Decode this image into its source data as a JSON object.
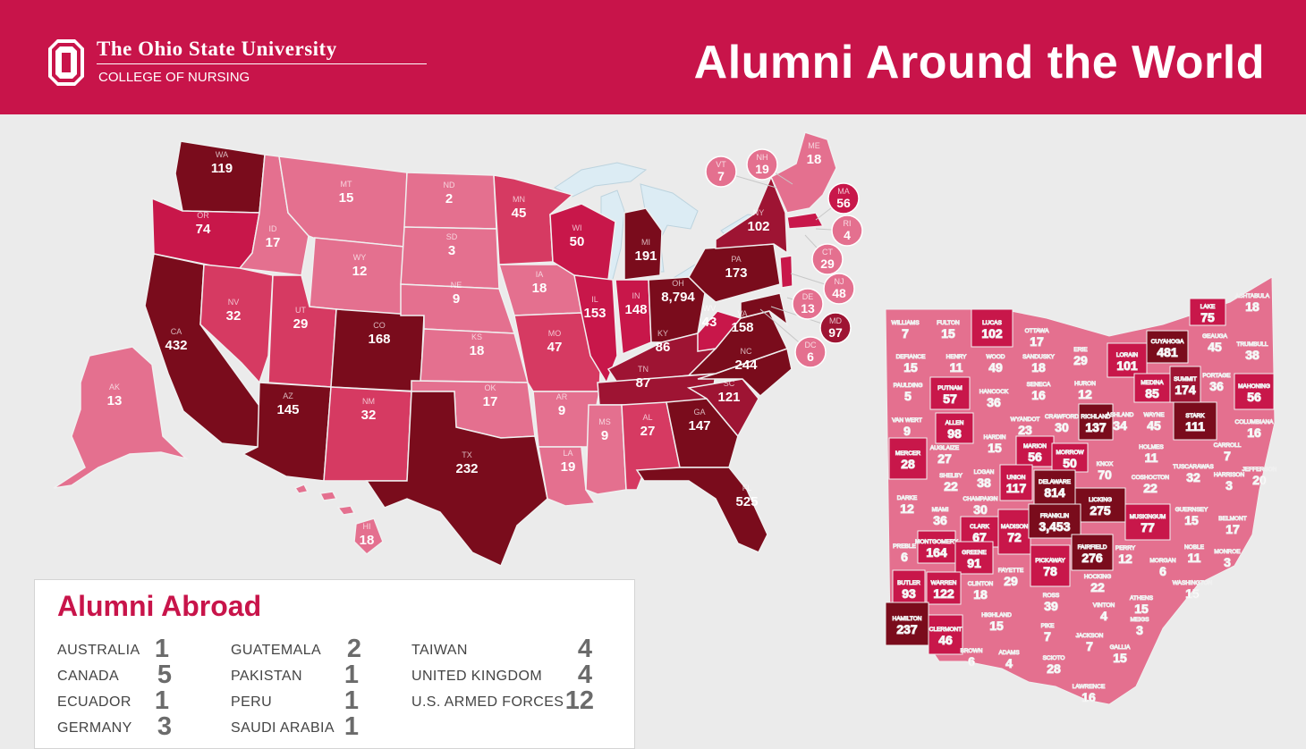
{
  "header": {
    "university": "The Ohio State University",
    "college": "COLLEGE OF NURSING",
    "title": "Alumni Around the World"
  },
  "colors": {
    "header_red": "#c8144a",
    "tier_1": "#e4708f",
    "tier_2": "#d63a62",
    "tier_3": "#c8174a",
    "tier_4": "#9e1433",
    "tier_5": "#7a0c1c",
    "lakes": "#dcecf4",
    "background": "#ebebeb"
  },
  "us_states": [
    {
      "abbr": "WA",
      "value": "119"
    },
    {
      "abbr": "OR",
      "value": "74"
    },
    {
      "abbr": "CA",
      "value": "432"
    },
    {
      "abbr": "ID",
      "value": "17"
    },
    {
      "abbr": "NV",
      "value": "32"
    },
    {
      "abbr": "MT",
      "value": "15"
    },
    {
      "abbr": "WY",
      "value": "12"
    },
    {
      "abbr": "UT",
      "value": "29"
    },
    {
      "abbr": "AZ",
      "value": "145"
    },
    {
      "abbr": "CO",
      "value": "168"
    },
    {
      "abbr": "NM",
      "value": "32"
    },
    {
      "abbr": "ND",
      "value": "2"
    },
    {
      "abbr": "SD",
      "value": "3"
    },
    {
      "abbr": "NE",
      "value": "9"
    },
    {
      "abbr": "KS",
      "value": "18"
    },
    {
      "abbr": "OK",
      "value": "17"
    },
    {
      "abbr": "TX",
      "value": "232"
    },
    {
      "abbr": "MN",
      "value": "45"
    },
    {
      "abbr": "IA",
      "value": "18"
    },
    {
      "abbr": "MO",
      "value": "47"
    },
    {
      "abbr": "AR",
      "value": "9"
    },
    {
      "abbr": "LA",
      "value": "19"
    },
    {
      "abbr": "WI",
      "value": "50"
    },
    {
      "abbr": "IL",
      "value": "153"
    },
    {
      "abbr": "MI",
      "value": "191"
    },
    {
      "abbr": "IN",
      "value": "148"
    },
    {
      "abbr": "OH",
      "value": "8,794"
    },
    {
      "abbr": "KY",
      "value": "86"
    },
    {
      "abbr": "TN",
      "value": "87"
    },
    {
      "abbr": "MS",
      "value": "9"
    },
    {
      "abbr": "AL",
      "value": "27"
    },
    {
      "abbr": "GA",
      "value": "147"
    },
    {
      "abbr": "FL",
      "value": "525"
    },
    {
      "abbr": "SC",
      "value": "121"
    },
    {
      "abbr": "NC",
      "value": "244"
    },
    {
      "abbr": "VA",
      "value": "158"
    },
    {
      "abbr": "WV",
      "value": "43"
    },
    {
      "abbr": "PA",
      "value": "173"
    },
    {
      "abbr": "NY",
      "value": "102"
    },
    {
      "abbr": "AK",
      "value": "13"
    },
    {
      "abbr": "HI",
      "value": "18"
    },
    {
      "abbr": "ME",
      "value": "18"
    }
  ],
  "northeast_callouts": [
    {
      "abbr": "VT",
      "value": "7"
    },
    {
      "abbr": "NH",
      "value": "19"
    },
    {
      "abbr": "MA",
      "value": "56"
    },
    {
      "abbr": "RI",
      "value": "4"
    },
    {
      "abbr": "CT",
      "value": "29"
    },
    {
      "abbr": "NJ",
      "value": "48"
    },
    {
      "abbr": "DE",
      "value": "13"
    },
    {
      "abbr": "MD",
      "value": "97"
    },
    {
      "abbr": "DC",
      "value": "6"
    }
  ],
  "ohio_counties": [
    {
      "name": "WILLIAMS",
      "value": "7"
    },
    {
      "name": "FULTON",
      "value": "15"
    },
    {
      "name": "LUCAS",
      "value": "102"
    },
    {
      "name": "OTTAWA",
      "value": "17"
    },
    {
      "name": "LAKE",
      "value": "75"
    },
    {
      "name": "ASHTABULA",
      "value": "18"
    },
    {
      "name": "DEFIANCE",
      "value": "15"
    },
    {
      "name": "HENRY",
      "value": "11"
    },
    {
      "name": "WOOD",
      "value": "49"
    },
    {
      "name": "SANDUSKY",
      "value": "18"
    },
    {
      "name": "ERIE",
      "value": "29"
    },
    {
      "name": "LORAIN",
      "value": "101"
    },
    {
      "name": "CUYAHOGA",
      "value": "481"
    },
    {
      "name": "GEAUGA",
      "value": "45"
    },
    {
      "name": "TRUMBULL",
      "value": "38"
    },
    {
      "name": "PAULDING",
      "value": "5"
    },
    {
      "name": "PUTNAM",
      "value": "57"
    },
    {
      "name": "HANCOCK",
      "value": "36"
    },
    {
      "name": "SENECA",
      "value": "16"
    },
    {
      "name": "HURON",
      "value": "12"
    },
    {
      "name": "MEDINA",
      "value": "85"
    },
    {
      "name": "SUMMIT",
      "value": "174"
    },
    {
      "name": "PORTAGE",
      "value": "36"
    },
    {
      "name": "MAHONING",
      "value": "56"
    },
    {
      "name": "VAN WERT",
      "value": "9"
    },
    {
      "name": "ALLEN",
      "value": "98"
    },
    {
      "name": "WYANDOT",
      "value": "23"
    },
    {
      "name": "CRAWFORD",
      "value": "30"
    },
    {
      "name": "RICHLAND",
      "value": "137"
    },
    {
      "name": "ASHLAND",
      "value": "34"
    },
    {
      "name": "WAYNE",
      "value": "45"
    },
    {
      "name": "STARK",
      "value": "111"
    },
    {
      "name": "COLUMBIANA",
      "value": "16"
    },
    {
      "name": "MERCER",
      "value": "28"
    },
    {
      "name": "AUGLAIZE",
      "value": "27"
    },
    {
      "name": "HARDIN",
      "value": "15"
    },
    {
      "name": "MARION",
      "value": "56"
    },
    {
      "name": "MORROW",
      "value": "50"
    },
    {
      "name": "KNOX",
      "value": "70"
    },
    {
      "name": "HOLMES",
      "value": "11"
    },
    {
      "name": "CARROLL",
      "value": "7"
    },
    {
      "name": "TUSCARAWAS",
      "value": "32"
    },
    {
      "name": "JEFFERSON",
      "value": "20"
    },
    {
      "name": "SHELBY",
      "value": "22"
    },
    {
      "name": "LOGAN",
      "value": "38"
    },
    {
      "name": "UNION",
      "value": "117"
    },
    {
      "name": "DELAWARE",
      "value": "814"
    },
    {
      "name": "LICKING",
      "value": "275"
    },
    {
      "name": "COSHOCTON",
      "value": "22"
    },
    {
      "name": "HARRISON",
      "value": "3"
    },
    {
      "name": "DARKE",
      "value": "12"
    },
    {
      "name": "MIAMI",
      "value": "36"
    },
    {
      "name": "CHAMPAIGN",
      "value": "30"
    },
    {
      "name": "CLARK",
      "value": "67"
    },
    {
      "name": "MADISON",
      "value": "72"
    },
    {
      "name": "FRANKLIN",
      "value": "3,453"
    },
    {
      "name": "MUSKINGUM",
      "value": "77"
    },
    {
      "name": "GUERNSEY",
      "value": "15"
    },
    {
      "name": "BELMONT",
      "value": "17"
    },
    {
      "name": "PREBLE",
      "value": "6"
    },
    {
      "name": "MONTGOMERY",
      "value": "164"
    },
    {
      "name": "GREENE",
      "value": "91"
    },
    {
      "name": "FAIRFIELD",
      "value": "276"
    },
    {
      "name": "PERRY",
      "value": "12"
    },
    {
      "name": "MORGAN",
      "value": "6"
    },
    {
      "name": "NOBLE",
      "value": "11"
    },
    {
      "name": "MONROE",
      "value": "3"
    },
    {
      "name": "PICKAWAY",
      "value": "78"
    },
    {
      "name": "FAYETTE",
      "value": "29"
    },
    {
      "name": "BUTLER",
      "value": "93"
    },
    {
      "name": "WARREN",
      "value": "122"
    },
    {
      "name": "CLINTON",
      "value": "18"
    },
    {
      "name": "HOCKING",
      "value": "22"
    },
    {
      "name": "ROSS",
      "value": "39"
    },
    {
      "name": "ATHENS",
      "value": "15"
    },
    {
      "name": "WASHINGTON",
      "value": "15"
    },
    {
      "name": "HAMILTON",
      "value": "237"
    },
    {
      "name": "CLERMONT",
      "value": "46"
    },
    {
      "name": "HIGHLAND",
      "value": "15"
    },
    {
      "name": "VINTON",
      "value": "4"
    },
    {
      "name": "MEIGS",
      "value": "3"
    },
    {
      "name": "PIKE",
      "value": "7"
    },
    {
      "name": "JACKSON",
      "value": "7"
    },
    {
      "name": "BROWN",
      "value": "6"
    },
    {
      "name": "ADAMS",
      "value": "4"
    },
    {
      "name": "SCIOTO",
      "value": "28"
    },
    {
      "name": "GALLIA",
      "value": "15"
    },
    {
      "name": "LAWRENCE",
      "value": "16"
    }
  ],
  "abroad": {
    "title": "Alumni Abroad",
    "countries": [
      {
        "name": "AUSTRALIA",
        "count": "1"
      },
      {
        "name": "CANADA",
        "count": "5"
      },
      {
        "name": "ECUADOR",
        "count": "1"
      },
      {
        "name": "GERMANY",
        "count": "3"
      },
      {
        "name": "GUATEMALA",
        "count": "2"
      },
      {
        "name": "PAKISTAN",
        "count": "1"
      },
      {
        "name": "PERU",
        "count": "1"
      },
      {
        "name": "SAUDI ARABIA",
        "count": "1"
      },
      {
        "name": "TAIWAN",
        "count": "4"
      },
      {
        "name": "UNITED KINGDOM",
        "count": "4"
      },
      {
        "name": "U.S. ARMED FORCES",
        "count": "12"
      }
    ]
  }
}
